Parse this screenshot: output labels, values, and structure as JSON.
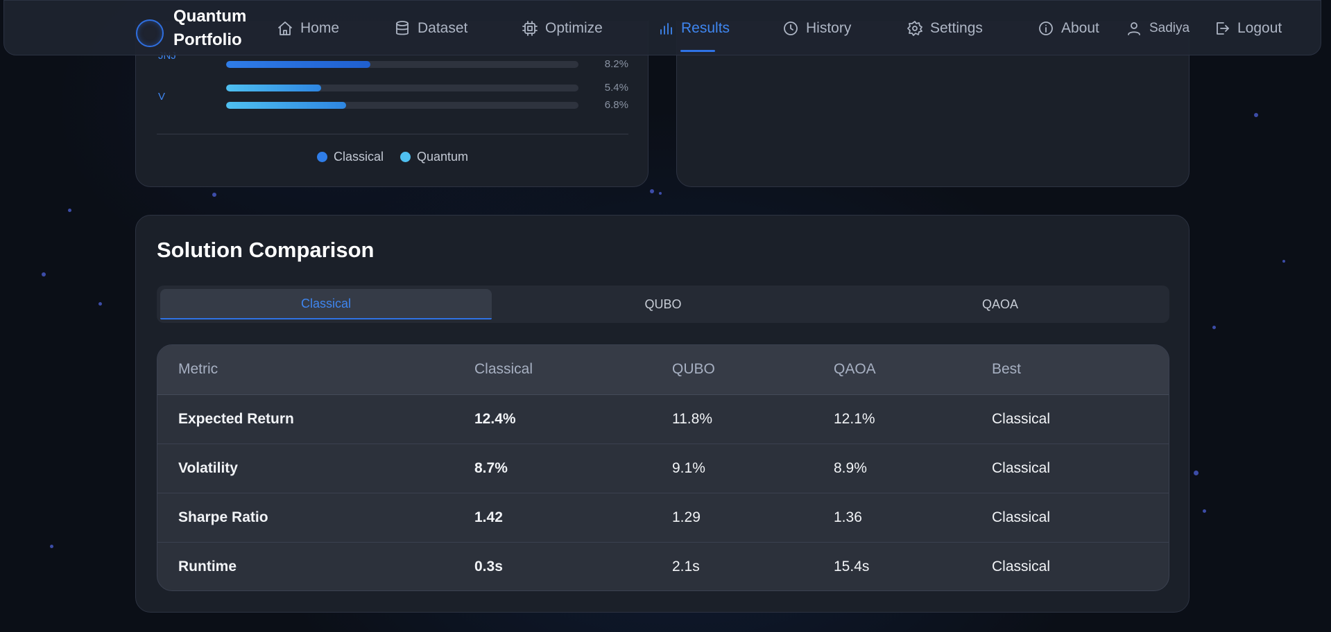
{
  "app": {
    "brand_line1": "Quantum",
    "brand_line2": "Portfolio"
  },
  "nav": {
    "items": [
      {
        "label": "Home",
        "icon": "home-icon"
      },
      {
        "label": "Dataset",
        "icon": "database-icon"
      },
      {
        "label": "Optimize",
        "icon": "chip-icon"
      },
      {
        "label": "Results",
        "icon": "bar-chart-icon",
        "active": true
      },
      {
        "label": "History",
        "icon": "clock-icon"
      },
      {
        "label": "Settings",
        "icon": "gear-icon"
      },
      {
        "label": "About",
        "icon": "info-icon"
      }
    ],
    "user": "Sadiya",
    "logout": "Logout"
  },
  "allocation": {
    "rows": [
      {
        "ticker": "JNJ",
        "classical_pct": null,
        "quantum_pct": 8.2,
        "quantum_label": "8.2%"
      },
      {
        "ticker": "V",
        "classical_pct": 5.4,
        "classical_label": "5.4%",
        "quantum_pct": 6.8,
        "quantum_label": "6.8%"
      }
    ],
    "legend": {
      "classical": "Classical",
      "quantum": "Quantum"
    },
    "colors": {
      "classical": "#2f7de8",
      "quantum": "#4fc0f0"
    }
  },
  "comparison": {
    "title": "Solution Comparison",
    "tabs": [
      "Classical",
      "QUBO",
      "QAOA"
    ],
    "active_tab": "Classical",
    "columns": [
      "Metric",
      "Classical",
      "QUBO",
      "QAOA",
      "Best"
    ],
    "rows": [
      {
        "metric": "Expected Return",
        "classical": "12.4%",
        "qubo": "11.8%",
        "qaoa": "12.1%",
        "best": "Classical"
      },
      {
        "metric": "Volatility",
        "classical": "8.7%",
        "qubo": "9.1%",
        "qaoa": "8.9%",
        "best": "Classical"
      },
      {
        "metric": "Sharpe Ratio",
        "classical": "1.42",
        "qubo": "1.29",
        "qaoa": "1.36",
        "best": "Classical"
      },
      {
        "metric": "Runtime",
        "classical": "0.3s",
        "qubo": "2.1s",
        "qaoa": "15.4s",
        "best": "Classical"
      }
    ]
  }
}
